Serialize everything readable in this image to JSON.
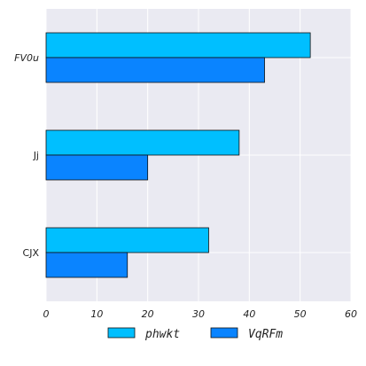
{
  "chart_data": {
    "type": "bar",
    "orientation": "horizontal",
    "title": "",
    "xlabel": "",
    "ylabel": "",
    "categories": [
      "FV0u",
      "Jj",
      "CJX"
    ],
    "series": [
      {
        "name": "phwkt",
        "values": [
          52,
          38,
          32
        ],
        "color": "#00bfff"
      },
      {
        "name": "VqRFm",
        "values": [
          43,
          20,
          16
        ],
        "color": "#0a84ff"
      }
    ],
    "xlim": [
      0,
      60
    ],
    "xticks": [
      0,
      10,
      20,
      30,
      40,
      50,
      60
    ],
    "grid": true,
    "background": "#eaeaf2",
    "legend_position": "bottom-center"
  }
}
